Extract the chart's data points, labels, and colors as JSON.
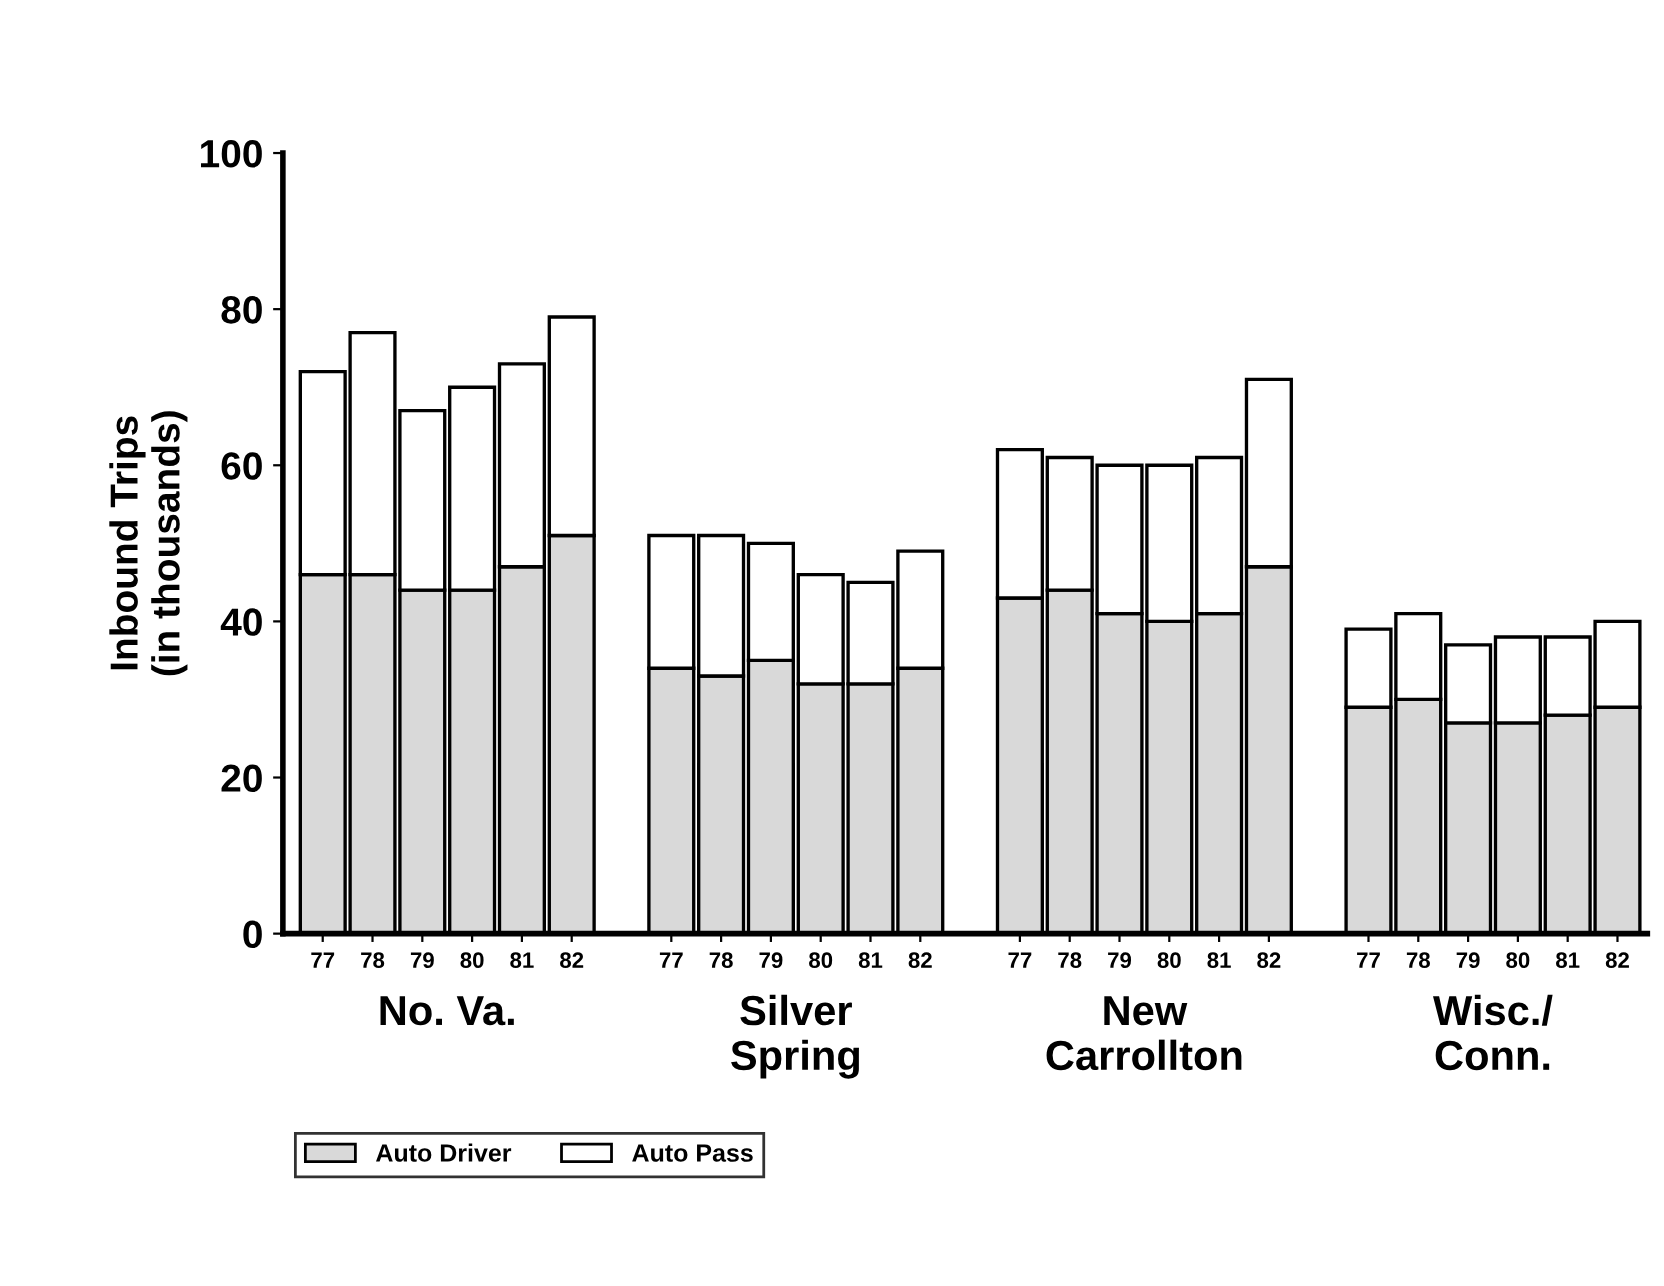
{
  "chart_data": {
    "type": "bar",
    "stacked": true,
    "ylabel": "Inbound Trips\n(in thousands)",
    "categories": [
      "77",
      "78",
      "79",
      "80",
      "81",
      "82",
      null,
      "77",
      "78",
      "79",
      "80",
      "81",
      "82",
      null,
      "77",
      "78",
      "79",
      "80",
      "81",
      "82",
      null,
      "77",
      "78",
      "79",
      "80",
      "81",
      "82"
    ],
    "annotations": [
      "No. Va.",
      "Silver\nSpring",
      "New\nCarrollton",
      "Wisc./\nConn."
    ],
    "series": [
      {
        "name": "Auto Driver",
        "color": "#d9d9d9",
        "values": [
          46,
          46,
          44,
          44,
          47,
          51,
          null,
          34,
          33,
          35,
          32,
          32,
          34,
          null,
          43,
          44,
          41,
          40,
          41,
          47,
          null,
          29,
          30,
          27,
          27,
          28,
          29
        ]
      },
      {
        "name": "Auto Pass",
        "color": "#ffffff",
        "values": [
          26,
          31,
          23,
          26,
          26,
          28,
          null,
          17,
          18,
          15,
          14,
          13,
          15,
          null,
          19,
          17,
          19,
          20,
          20,
          24,
          null,
          10,
          11,
          10,
          11,
          10,
          11
        ]
      }
    ],
    "ylim": [
      0,
      100
    ],
    "yticks": [
      0,
      20,
      40,
      60,
      80,
      100
    ],
    "grid": false,
    "legend": "bottom left"
  }
}
